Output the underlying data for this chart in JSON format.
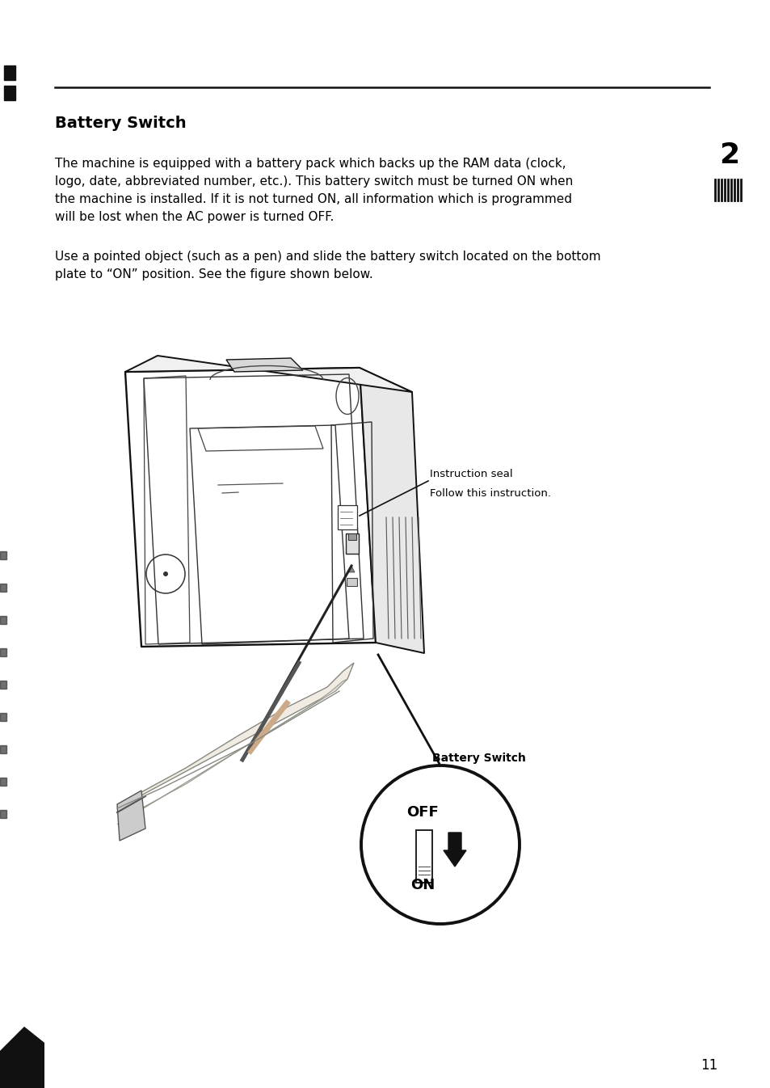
{
  "title": "Battery Switch",
  "section_number": "2",
  "page_number": "11",
  "paragraph1_line1": "The machine is equipped with a battery pack which backs up the RAM data (clock,",
  "paragraph1_line2": "logo, date, abbreviated number, etc.). This battery switch must be turned ON when",
  "paragraph1_line3": "the machine is installed. If it is not turned ON, all information which is programmed",
  "paragraph1_line4": "will be lost when the AC power is turned OFF.",
  "paragraph2_line1": "Use a pointed object (such as a pen) and slide the battery switch located on the bottom",
  "paragraph2_line2": "plate to “ON” position. See the figure shown below.",
  "instruction_seal_label": "Instruction seal",
  "instruction_seal_sub": "Follow this instruction.",
  "battery_switch_label": "Battery Switch",
  "off_label": "OFF",
  "on_label": "ON",
  "bg_color": "#ffffff",
  "text_color": "#000000",
  "title_fontsize": 14,
  "body_fontsize": 11,
  "label_fontsize": 9.5
}
